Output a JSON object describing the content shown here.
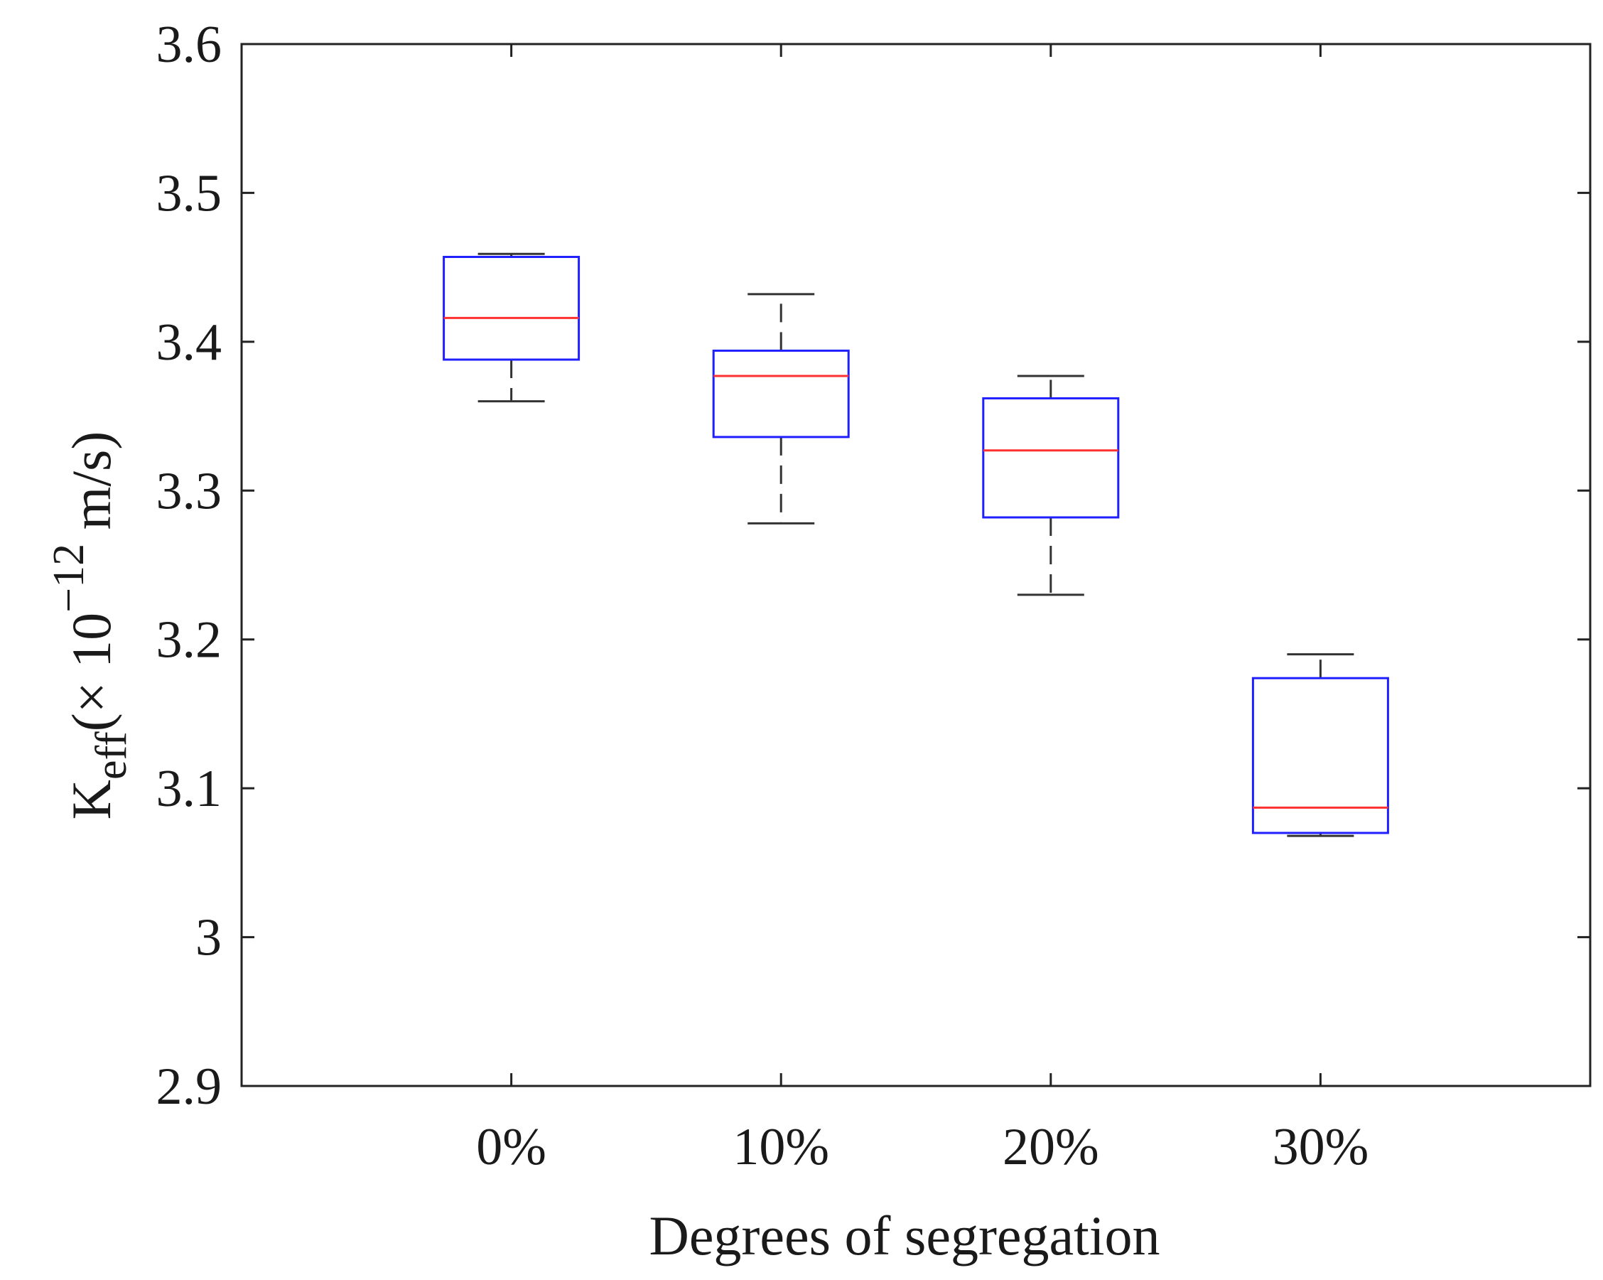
{
  "chart_data": {
    "type": "boxplot",
    "title": "",
    "xlabel": "Degrees of segregation",
    "ylabel": {
      "main": "K",
      "subscript": "eff",
      "units_prefix": "(× 10",
      "exponent": "−12",
      "units_suffix": " m/s)"
    },
    "ylim": [
      2.9,
      3.6
    ],
    "yticks": [
      2.9,
      3.0,
      3.1,
      3.2,
      3.3,
      3.4,
      3.5,
      3.6
    ],
    "ytick_labels": [
      "2.9",
      "3",
      "3.1",
      "3.2",
      "3.3",
      "3.4",
      "3.5",
      "3.6"
    ],
    "categories": [
      "0%",
      "10%",
      "20%",
      "30%"
    ],
    "boxes": [
      {
        "category": "0%",
        "whisker_low": 3.36,
        "q1": 3.388,
        "median": 3.416,
        "q3": 3.457,
        "whisker_high": 3.459
      },
      {
        "category": "10%",
        "whisker_low": 3.278,
        "q1": 3.336,
        "median": 3.377,
        "q3": 3.394,
        "whisker_high": 3.432
      },
      {
        "category": "20%",
        "whisker_low": 3.23,
        "q1": 3.282,
        "median": 3.327,
        "q3": 3.362,
        "whisker_high": 3.377
      },
      {
        "category": "30%",
        "whisker_low": 3.068,
        "q1": 3.07,
        "median": 3.087,
        "q3": 3.174,
        "whisker_high": 3.19
      }
    ],
    "grid": false,
    "colors": {
      "box": "#1f1fff",
      "median": "#ff3030",
      "whisker": "#333333",
      "axis": "#222222"
    }
  }
}
